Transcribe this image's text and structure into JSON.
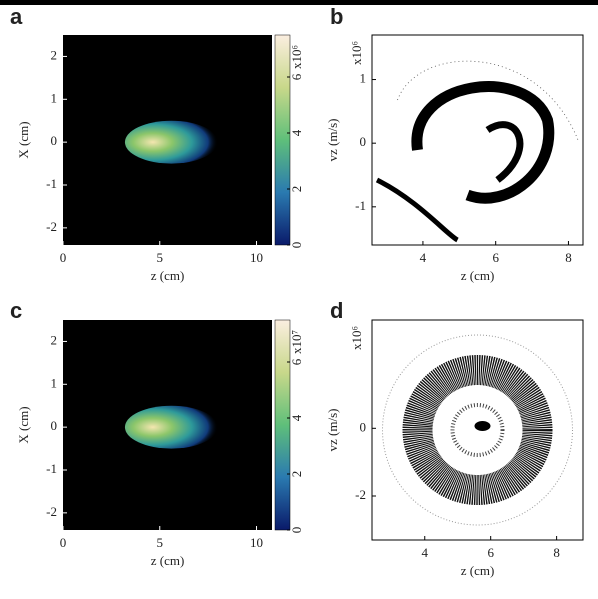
{
  "chart_data": [
    {
      "type": "heatmap",
      "label": "a",
      "xlabel": "z (cm)",
      "ylabel": "X (cm)",
      "xlim": [
        0,
        10.8
      ],
      "ylim": [
        -2.4,
        2.5
      ],
      "xticks": [
        0,
        5,
        10
      ],
      "yticks": [
        -2,
        -1,
        0,
        1,
        2
      ],
      "cbar_label": "x10⁶",
      "cbar_lim": [
        0,
        7.5
      ],
      "cbar_ticks": [
        0,
        2,
        4,
        6
      ]
    },
    {
      "type": "scatter",
      "label": "b",
      "xlabel": "z (cm)",
      "ylabel": "vz (m/s)",
      "y_multiplier": "x10⁶",
      "xlim": [
        2.6,
        8.4
      ],
      "ylim": [
        -1.6,
        1.7
      ],
      "xticks": [
        4,
        6,
        8
      ],
      "yticks": [
        -1,
        0,
        1
      ]
    },
    {
      "type": "heatmap",
      "label": "c",
      "xlabel": "z (cm)",
      "ylabel": "X (cm)",
      "xlim": [
        0,
        10.8
      ],
      "ylim": [
        -2.4,
        2.5
      ],
      "xticks": [
        0,
        5,
        10
      ],
      "yticks": [
        -2,
        -1,
        0,
        1,
        2
      ],
      "cbar_label": "x10⁷",
      "cbar_lim": [
        0,
        7.5
      ],
      "cbar_ticks": [
        0,
        2,
        4,
        6
      ]
    },
    {
      "type": "scatter",
      "label": "d",
      "xlabel": "z (cm)",
      "ylabel": "vz (m/s)",
      "y_multiplier": "x10⁶",
      "xlim": [
        2.4,
        8.8
      ],
      "ylim": [
        -3.3,
        3.2
      ],
      "xticks": [
        4,
        6,
        8
      ],
      "yticks": [
        -2,
        0
      ]
    }
  ]
}
